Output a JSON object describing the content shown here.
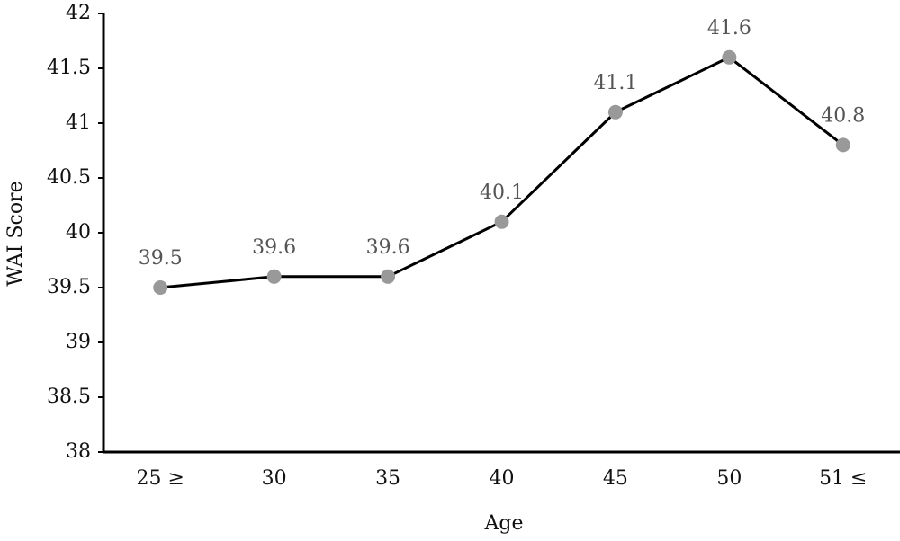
{
  "chart_data": {
    "type": "line",
    "x_label": "Age",
    "y_label": "WAI Score",
    "categories": [
      "25 ≥",
      "30",
      "35",
      "40",
      "45",
      "50",
      "51 ≤"
    ],
    "values": [
      39.5,
      39.6,
      39.6,
      40.1,
      41.1,
      41.6,
      40.8
    ],
    "color": "#000000",
    "marker_color": "#999999",
    "ylim": [
      38,
      42
    ],
    "yticks": [
      38,
      38.5,
      39,
      39.5,
      40,
      40.5,
      41,
      41.5,
      42
    ],
    "grid": false
  }
}
